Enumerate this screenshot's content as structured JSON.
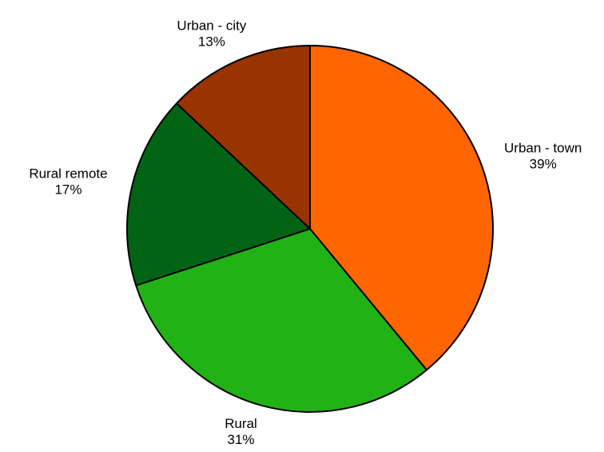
{
  "chart_data": {
    "type": "pie",
    "categories": [
      "Urban - town",
      "Rural",
      "Rural remote",
      "Urban - city"
    ],
    "values": [
      39,
      31,
      17,
      13
    ],
    "value_labels": [
      "39%",
      "31%",
      "17%",
      "13%"
    ],
    "colors": [
      "#ff6600",
      "#21b315",
      "#006414",
      "#993300"
    ]
  }
}
